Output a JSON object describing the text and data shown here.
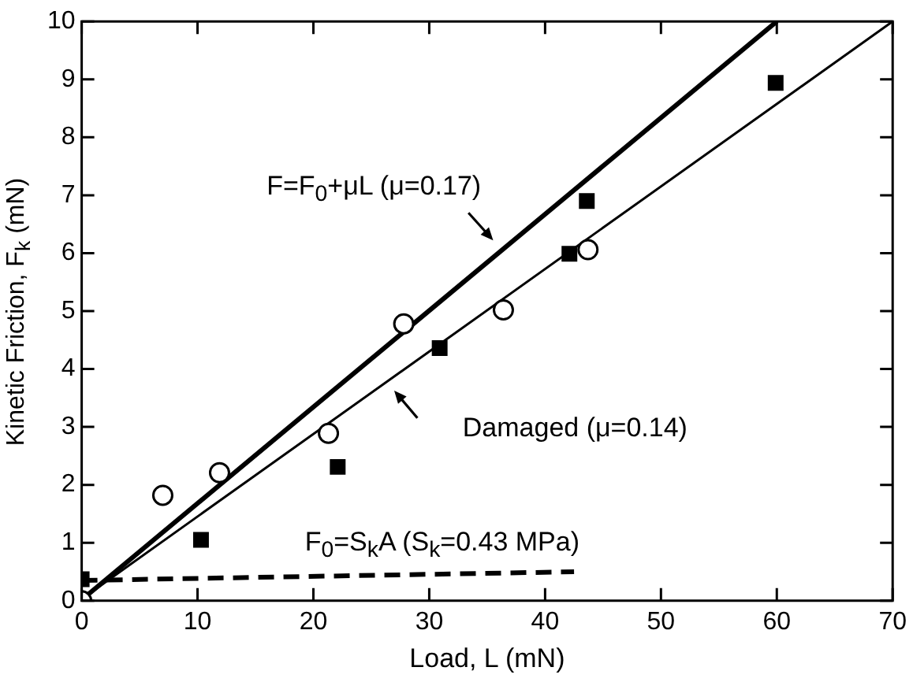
{
  "chart_data": {
    "type": "scatter",
    "xlabel": "Load, L (mN)",
    "ylabel": "Kinetic Friction, F$_{k}$ (mN)",
    "xlim": [
      0,
      70
    ],
    "xticks": [
      0,
      10,
      20,
      30,
      40,
      50,
      60,
      70
    ],
    "ylim": [
      0,
      10
    ],
    "yticks": [
      0,
      1,
      2,
      3,
      4,
      5,
      6,
      7,
      8,
      9,
      10
    ],
    "grid": false,
    "legend": false,
    "series": [
      {
        "type": "scatter",
        "marker": "circle",
        "color": "#000000",
        "x": [
          0,
          7.0,
          11.9,
          21.3,
          27.8,
          36.4,
          43.7
        ],
        "values": [
          0,
          1.82,
          2.21,
          2.89,
          4.78,
          5.02,
          6.06
        ]
      },
      {
        "type": "scatter",
        "marker": "square",
        "color": "#000000",
        "x": [
          0,
          10.3,
          22.1,
          30.9,
          42.1,
          43.6,
          59.9
        ],
        "values": [
          0.37,
          1.05,
          2.31,
          4.36,
          5.99,
          6.9,
          8.94
        ]
      },
      {
        "type": "line",
        "marker": "none",
        "line_style": "solid",
        "color": "#000000",
        "x": [
          0.5,
          60
        ],
        "values": [
          0.1,
          10
        ]
      },
      {
        "type": "line",
        "marker": "none",
        "line_style": "solid",
        "color": "#000000",
        "x": [
          0.5,
          70
        ],
        "values": [
          0.1,
          10
        ]
      },
      {
        "type": "line",
        "marker": "none",
        "line_style": "dashed",
        "color": "#000000",
        "x": [
          0,
          42.5
        ],
        "values": [
          0.35,
          0.5
        ]
      }
    ],
    "annotations": [
      {
        "text": "F=F$_{0}$+μL (μ=0.17)",
        "x": 35.7,
        "y": 6.18
      },
      {
        "text": "Damaged (μ=0.14)",
        "x": 26.8,
        "y": 3.67
      },
      {
        "text": "F$_{0}$=S$_{k}$A (S$_{k}$=0.43 MPa)",
        "x": 22,
        "y": 0.44
      }
    ]
  }
}
